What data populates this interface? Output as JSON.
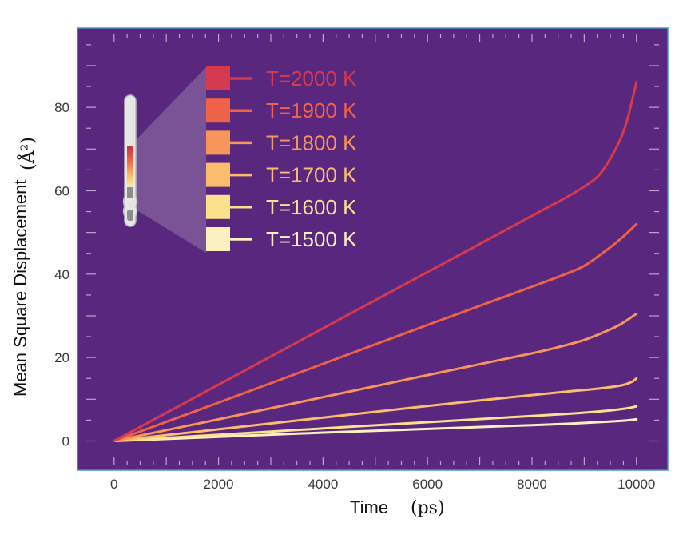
{
  "chart_data": {
    "type": "line",
    "xlabel": "Time",
    "xunit": "(ps)",
    "ylabel": "Mean Square Displacement",
    "yunit": "(Å²)",
    "xlim": [
      -700,
      10600
    ],
    "ylim": [
      -7,
      99
    ],
    "xticks": [
      0,
      2000,
      4000,
      6000,
      8000,
      10000
    ],
    "xtick_labels": [
      "0",
      "2000",
      "4000",
      "6000",
      "8000",
      "10000"
    ],
    "yticks": [
      0,
      20,
      40,
      60,
      80
    ],
    "ytick_labels": [
      "0",
      "20",
      "40",
      "60",
      "80"
    ],
    "grid": false,
    "legend_position": "top-left",
    "background_color": "#59287e",
    "frame_color": "#4a90c8",
    "legend_icon": "thermometer-icon",
    "series": [
      {
        "name": "T=2000 K",
        "color": "#d63a4e",
        "x": [
          0,
          2000,
          4000,
          6000,
          8000,
          8600,
          9000,
          9300,
          9600,
          9800,
          10000
        ],
        "y": [
          0,
          13.5,
          27,
          40.5,
          54,
          58,
          61,
          64,
          70,
          76,
          86
        ]
      },
      {
        "name": "T=1900 K",
        "color": "#ee6248",
        "x": [
          0,
          2000,
          4000,
          6000,
          8000,
          8600,
          9000,
          9400,
          9700,
          10000
        ],
        "y": [
          0,
          9.2,
          18.5,
          27.8,
          37,
          39.8,
          42,
          45.5,
          48.5,
          52
        ]
      },
      {
        "name": "T=1800 K",
        "color": "#f7955a",
        "x": [
          0,
          2000,
          4000,
          6000,
          8000,
          8600,
          9000,
          9400,
          9700,
          10000
        ],
        "y": [
          0,
          5.2,
          10.5,
          15.8,
          21,
          22.8,
          24.2,
          26.2,
          28,
          30.5
        ]
      },
      {
        "name": "T=1700 K",
        "color": "#fbbc6e",
        "x": [
          0,
          2000,
          4000,
          6000,
          8000,
          8800,
          9300,
          9700,
          9900,
          10000
        ],
        "y": [
          0,
          2.8,
          5.6,
          8.4,
          11,
          12,
          12.6,
          13.3,
          14.1,
          15
        ]
      },
      {
        "name": "T=1600 K",
        "color": "#fbe08e",
        "x": [
          0,
          2000,
          4000,
          6000,
          8000,
          8800,
          9400,
          9800,
          10000
        ],
        "y": [
          0,
          1.5,
          3,
          4.5,
          6,
          6.6,
          7.2,
          7.8,
          8.3
        ]
      },
      {
        "name": "T=1500 K",
        "color": "#fcf0c0",
        "x": [
          0,
          2000,
          4000,
          6000,
          8000,
          8800,
          9400,
          9800,
          10000
        ],
        "y": [
          0,
          1,
          2,
          2.9,
          3.8,
          4.2,
          4.6,
          4.9,
          5.2
        ]
      }
    ]
  }
}
